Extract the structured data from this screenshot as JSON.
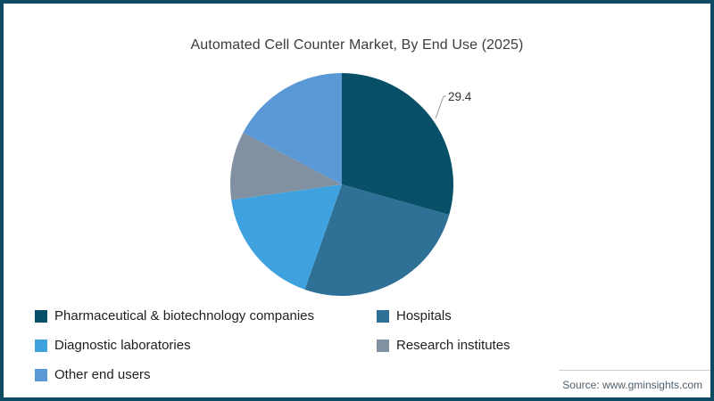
{
  "window": {
    "border_color": "#0d4a63",
    "background_color": "#ffffff"
  },
  "chart": {
    "title": "Automated Cell Counter Market, By End Use (2025)"
  },
  "chart_data": {
    "type": "pie",
    "title": "Automated Cell Counter Market, By End Use (2025)",
    "unit": "percent share",
    "start_angle_deg": 0,
    "direction": "clockwise",
    "legend_position": "bottom",
    "series": [
      {
        "name": "Pharmaceutical & biotechnology companies",
        "value": 29.4,
        "color": "#084F68"
      },
      {
        "name": "Hospitals",
        "value": 26.0,
        "color": "#2E7096"
      },
      {
        "name": "Diagnostic laboratories",
        "value": 17.4,
        "color": "#3FA2DE"
      },
      {
        "name": "Research institutes",
        "value": 9.9,
        "color": "#8191A1"
      },
      {
        "name": "Other end users",
        "value": 17.3,
        "color": "#5A99D6"
      }
    ],
    "data_label": {
      "series": "Pharmaceutical & biotechnology companies",
      "text": "29.4"
    }
  },
  "source": {
    "label": "Source: www.gminsights.com"
  }
}
